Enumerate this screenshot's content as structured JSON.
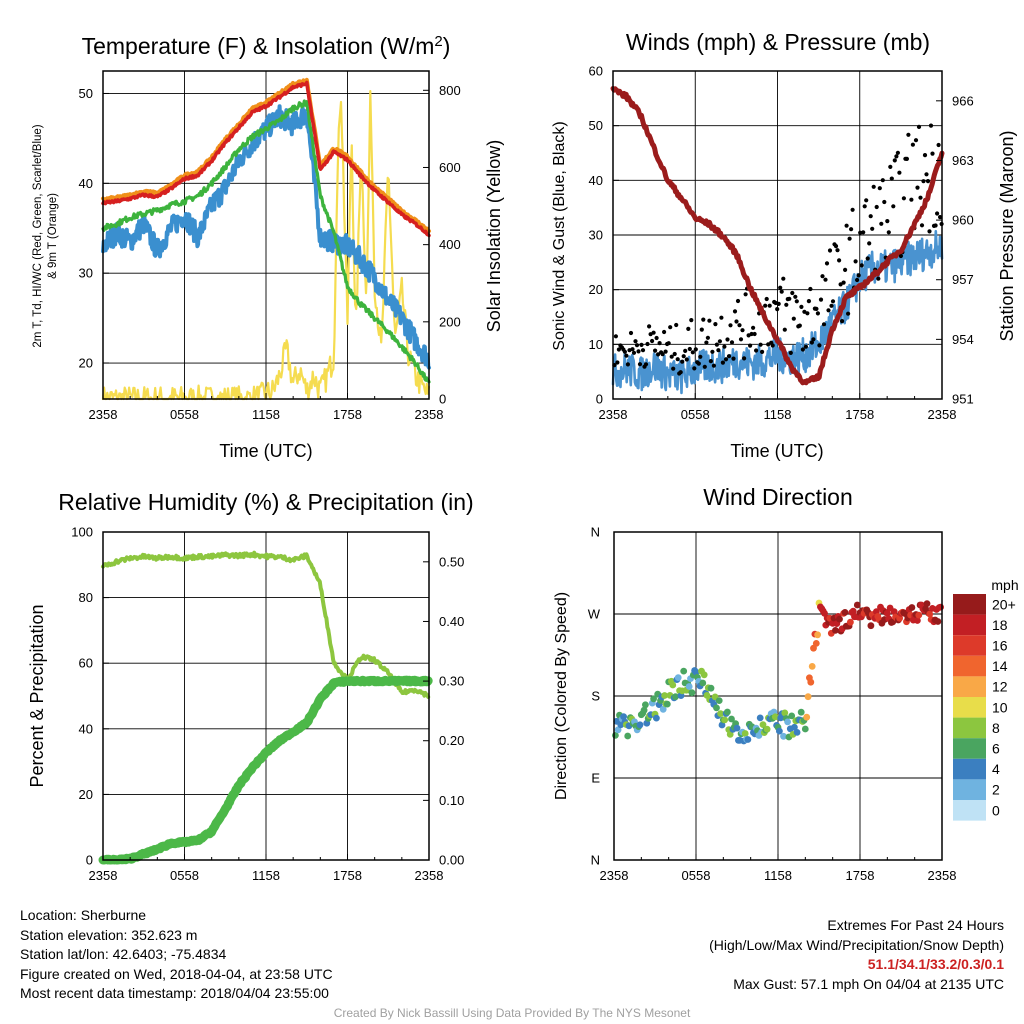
{
  "colors": {
    "temp": "#d62020",
    "dewpoint": "#3a8fcf",
    "index": "#3db33d",
    "t9m": "#f0901a",
    "solar": "#f5dc50",
    "sonic_wind": "#4a93d0",
    "gust": "#000000",
    "pressure": "#9b1c1c",
    "rh": "#8dc63f",
    "precip": "#4cb848"
  },
  "chart_data": [
    {
      "type": "line",
      "title": "Temperature (F) & Insolation (W/m²)",
      "title_main": "Temperature (F) & Insolation (W/m",
      "title_sup": "2",
      "title_end": ")",
      "xlabel": "Time (UTC)",
      "ylabel_left_line1": "2m T, Td, HI/WC (Red, Green, Scarlet/Blue)",
      "ylabel_left_line2": "& 9m T (Orange)",
      "ylabel_right": "Solar Insolation (Yellow)",
      "x_ticks": [
        "2358",
        "0558",
        "1158",
        "1758",
        "2358"
      ],
      "x_range_hours": [
        0,
        24
      ],
      "ylim": [
        16,
        52.5
      ],
      "yticks": [
        "20",
        "30",
        "40",
        "50"
      ],
      "ylim_right": [
        0,
        850
      ],
      "yticks_right": [
        "0",
        "200",
        "400",
        "600",
        "800"
      ],
      "series": [
        {
          "name": "2m T (Red)",
          "x": [
            0,
            1,
            2,
            3,
            4,
            5,
            6,
            7,
            8,
            9,
            10,
            11,
            12,
            13,
            14,
            15,
            16,
            17,
            18,
            19,
            20,
            21,
            22,
            23,
            24
          ],
          "values": [
            37.8,
            38,
            38.3,
            38.7,
            38.5,
            39.4,
            40.5,
            40.9,
            42.5,
            44.5,
            46.2,
            47.9,
            48.6,
            49.6,
            50.7,
            51.1,
            41.5,
            43.5,
            42.6,
            40.8,
            39.2,
            37.9,
            36.5,
            35.5,
            34.3
          ]
        },
        {
          "name": "9m T (Orange)",
          "x": [
            0,
            1,
            2,
            3,
            4,
            5,
            6,
            7,
            8,
            9,
            10,
            11,
            12,
            13,
            14,
            15,
            16,
            17,
            18,
            19,
            20,
            21,
            22,
            23,
            24
          ],
          "values": [
            38.2,
            38.4,
            38.7,
            39.1,
            38.9,
            39.8,
            40.9,
            41.3,
            42.9,
            44.9,
            46.6,
            48.3,
            49,
            50,
            51.1,
            51.5,
            42,
            43.9,
            43,
            41.2,
            39.6,
            38.3,
            36.9,
            35.9,
            34.7
          ]
        },
        {
          "name": "Td / Index (Green)",
          "x": [
            0,
            1,
            2,
            3,
            4,
            5,
            6,
            7,
            8,
            9,
            10,
            11,
            12,
            13,
            14,
            15,
            16,
            17,
            18,
            19,
            20,
            21,
            22,
            23,
            24
          ],
          "values": [
            35,
            35.5,
            36.2,
            36.6,
            37,
            37.6,
            38,
            38.6,
            40,
            41.8,
            43.8,
            45.2,
            46.1,
            47,
            48.4,
            49,
            38.6,
            34.5,
            28.5,
            26.5,
            25,
            23.5,
            21.8,
            20,
            17.7
          ]
        },
        {
          "name": "Wind Chill (Blue)",
          "x": [
            0,
            1,
            2,
            3,
            4,
            5,
            6,
            7,
            8,
            9,
            10,
            11,
            12,
            13,
            14,
            15,
            16,
            17,
            18,
            19,
            20,
            21,
            22,
            23,
            24
          ],
          "values": [
            33,
            34.5,
            33.5,
            35.5,
            32.5,
            35,
            36.5,
            34,
            37.5,
            39.5,
            42.5,
            44.5,
            46,
            47.5,
            46.5,
            48,
            34,
            33.5,
            33,
            31.5,
            29.5,
            27,
            25,
            22.5,
            20.4
          ]
        },
        {
          "name": "Solar Insolation (Yellow)",
          "axis": "right",
          "x": [
            0,
            4,
            6,
            8,
            9.2,
            10.7,
            11.5,
            12.5,
            13,
            13.5,
            14,
            14.5,
            15,
            15.5,
            16,
            16.5,
            17,
            17.2,
            17.5,
            18,
            18.3,
            18.6,
            19,
            19.4,
            19.7,
            20,
            20.5,
            21,
            21.5,
            22,
            22.5,
            23,
            23.5,
            24
          ],
          "values": [
            0,
            0,
            0,
            0,
            0,
            0,
            5,
            20,
            60,
            130,
            40,
            75,
            20,
            60,
            20,
            60,
            110,
            500,
            820,
            200,
            700,
            150,
            650,
            250,
            800,
            300,
            120,
            600,
            150,
            280,
            110,
            60,
            30,
            5
          ]
        }
      ]
    },
    {
      "type": "line",
      "title": "Winds (mph) & Pressure (mb)",
      "xlabel": "Time (UTC)",
      "ylabel_left": "Sonic Wind & Gust (Blue, Black)",
      "ylabel_right": "Station Pressure (Maroon)",
      "x_ticks": [
        "2358",
        "0558",
        "1158",
        "1758",
        "2358"
      ],
      "x_range_hours": [
        0,
        24
      ],
      "ylim": [
        0,
        60
      ],
      "yticks": [
        "0",
        "10",
        "20",
        "30",
        "40",
        "50",
        "60"
      ],
      "ylim_right": [
        951,
        967.5
      ],
      "yticks_right": [
        "951",
        "954",
        "957",
        "960",
        "963",
        "966"
      ],
      "series": [
        {
          "name": "Sonic Wind (Blue)",
          "x": [
            0,
            1,
            2,
            3,
            4,
            5,
            6,
            7,
            8,
            9,
            10,
            11,
            12,
            13,
            14,
            15,
            16,
            17,
            18,
            19,
            20,
            21,
            22,
            23,
            24
          ],
          "values": [
            5,
            5.5,
            4.5,
            6,
            4.5,
            4,
            5.5,
            6,
            6,
            7,
            6.5,
            7,
            8,
            7.5,
            8,
            10,
            14,
            17,
            22,
            24,
            24,
            25,
            26,
            27,
            28
          ]
        },
        {
          "name": "Gust (Black dots)",
          "x": [
            0,
            1,
            2,
            3,
            4,
            5,
            6,
            7,
            8,
            9,
            10,
            11,
            12,
            13,
            14,
            15,
            16,
            17,
            18,
            19,
            20,
            21,
            22,
            23,
            24
          ],
          "values": [
            9,
            9,
            9.5,
            10,
            9,
            9,
            10,
            10.5,
            12,
            13,
            14,
            15,
            16,
            15,
            14,
            17,
            20,
            24,
            28,
            31,
            33,
            36,
            40,
            41,
            43
          ]
        },
        {
          "name": "Station Pressure (Maroon)",
          "axis": "right",
          "x": [
            0,
            1,
            2,
            3,
            4,
            5,
            6,
            7,
            8,
            9,
            10,
            11,
            12,
            13,
            14,
            15,
            16,
            17,
            18,
            19,
            20,
            21,
            22,
            23,
            24
          ],
          "values": [
            966.6,
            966.2,
            965.3,
            963.6,
            962,
            961.1,
            960.1,
            959.8,
            959.2,
            958.3,
            956.6,
            955.2,
            954,
            952.6,
            951.8,
            952.1,
            954.5,
            956.1,
            956.6,
            957.2,
            957.9,
            958.5,
            959.8,
            961.2,
            963.4
          ]
        }
      ]
    },
    {
      "type": "line",
      "title": "Relative Humidity (%) & Precipitation (in)",
      "xlabel": "",
      "ylabel_left": "Percent & Precipitation",
      "x_ticks": [
        "2358",
        "0558",
        "1158",
        "1758",
        "2358"
      ],
      "x_range_hours": [
        0,
        24
      ],
      "ylim": [
        0,
        100
      ],
      "yticks": [
        "0",
        "20",
        "40",
        "60",
        "80",
        "100"
      ],
      "ylim_right": [
        0,
        0.55
      ],
      "yticks_right": [
        "0.00",
        "0.10",
        "0.20",
        "0.30",
        "0.40",
        "0.50"
      ],
      "series": [
        {
          "name": "Relative Humidity (%)",
          "x": [
            0,
            1,
            2,
            3,
            4,
            5,
            6,
            7,
            8,
            9,
            10,
            11,
            12,
            13,
            14,
            15,
            16,
            17,
            18,
            19,
            20,
            21,
            22,
            23,
            24
          ],
          "values": [
            89.5,
            91,
            92,
            92.5,
            92,
            92.5,
            92,
            92.5,
            92.5,
            93,
            92.8,
            93.2,
            92.6,
            92.4,
            91.5,
            92.8,
            84,
            60,
            55,
            62,
            61,
            57,
            51,
            52,
            50
          ]
        },
        {
          "name": "Precipitation (in)",
          "axis": "right",
          "x": [
            0,
            1,
            2,
            3,
            4,
            5,
            6,
            7,
            8,
            9,
            10,
            11,
            12,
            13,
            14,
            15,
            16,
            17,
            18,
            19,
            20,
            21,
            22,
            23,
            24
          ],
          "values": [
            0,
            0,
            0.002,
            0.01,
            0.018,
            0.028,
            0.03,
            0.033,
            0.048,
            0.085,
            0.125,
            0.155,
            0.18,
            0.2,
            0.215,
            0.23,
            0.27,
            0.297,
            0.3,
            0.3,
            0.3,
            0.3,
            0.3,
            0.3,
            0.3
          ]
        }
      ]
    },
    {
      "type": "scatter",
      "title": "Wind Direction",
      "ylabel": "Direction (Colored By Speed)",
      "x_ticks": [
        "2358",
        "0558",
        "1158",
        "1758",
        "2358"
      ],
      "x_range_hours": [
        0,
        24
      ],
      "ylim_degrees": [
        0,
        360
      ],
      "yticks": [
        "N",
        "E",
        "S",
        "W",
        "N"
      ],
      "colorbar": {
        "title": "mph",
        "labels": [
          "20+",
          "18",
          "16",
          "14",
          "12",
          "10",
          "8",
          "6",
          "4",
          "2",
          "0"
        ],
        "colors": [
          "#961b1b",
          "#c21f24",
          "#dd3a2a",
          "#f0652e",
          "#f9a847",
          "#e8dd4a",
          "#8cc63f",
          "#4aa560",
          "#3b7fc0",
          "#6fb3e0",
          "#bfe2f5"
        ]
      },
      "series": [
        {
          "name": "Wind Direction (deg)",
          "x": [
            0,
            1,
            2,
            3,
            4,
            5,
            6,
            7,
            8,
            9,
            10,
            11,
            12,
            13,
            14,
            15,
            16,
            17,
            18,
            19,
            20,
            21,
            22,
            23,
            24
          ],
          "values": [
            150,
            148,
            155,
            165,
            185,
            195,
            198,
            190,
            150,
            145,
            143,
            147,
            150,
            145,
            150,
            270,
            255,
            265,
            273,
            265,
            270,
            271,
            270,
            272,
            268
          ]
        }
      ]
    }
  ],
  "info": {
    "location": "Location: Sherburne",
    "elevation": "Station elevation: 352.623 m",
    "latlon": "Station lat/lon: 42.6403; -75.4834",
    "created": "Figure created on Wed, 2018-04-04, at 23:58 UTC",
    "recent": "Most recent data timestamp: 2018/04/04 23:55:00"
  },
  "extremes": {
    "heading": "Extremes For Past 24 Hours",
    "legend": "(High/Low/Max Wind/Precipitation/Snow Depth)",
    "values": "51.1/34.1/33.2/0.3/0.1",
    "max_gust": "Max Gust: 57.1 mph On 04/04 at 2135 UTC"
  },
  "footer": {
    "credit": "Created By Nick Bassill Using Data Provided By The NYS Mesonet"
  }
}
